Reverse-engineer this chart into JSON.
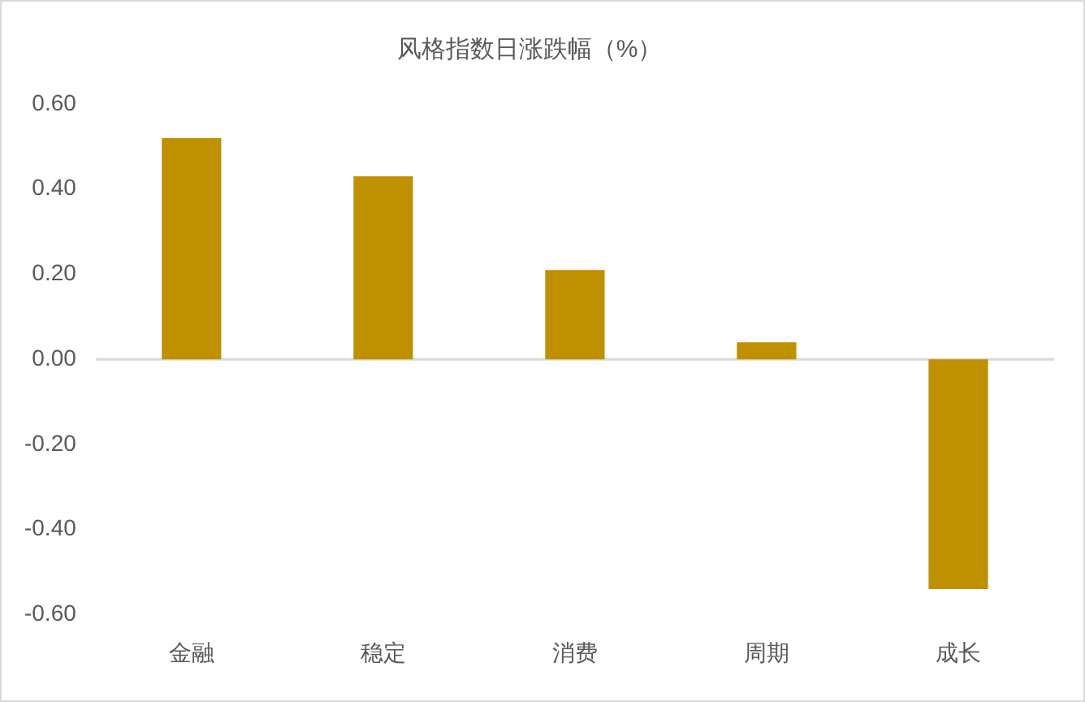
{
  "chart_data": {
    "type": "bar",
    "title": "风格指数日涨跌幅（%）",
    "categories": [
      "金融",
      "稳定",
      "消费",
      "周期",
      "成长"
    ],
    "values": [
      0.52,
      0.43,
      0.21,
      0.04,
      -0.54
    ],
    "color": "#bf9000",
    "ylim": [
      -0.6,
      0.6
    ],
    "yticks": [
      {
        "value": -0.6,
        "label": "-0.60"
      },
      {
        "value": -0.4,
        "label": "-0.40"
      },
      {
        "value": -0.2,
        "label": "-0.20"
      },
      {
        "value": 0,
        "label": "0.00"
      },
      {
        "value": 0.2,
        "label": "0.20"
      },
      {
        "value": 0.4,
        "label": "0.40"
      },
      {
        "value": 0.6,
        "label": "0.60"
      }
    ],
    "ref_lines": [
      {
        "axis": "y",
        "value": 0,
        "color": "#d9d9d9"
      }
    ],
    "grid": false,
    "legend": false
  }
}
